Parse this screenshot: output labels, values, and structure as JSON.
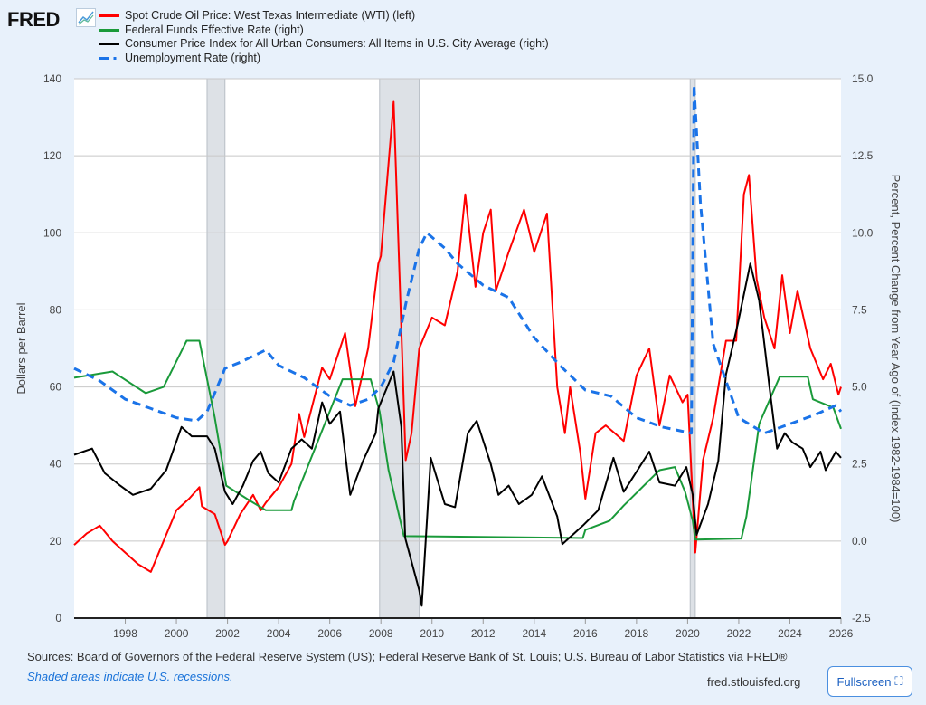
{
  "logo": "FRED",
  "chart_data": {
    "type": "line",
    "legend_placement": "top-left",
    "legend": [
      "Spot Crude Oil Price: West Texas Intermediate (WTI) (left)",
      "Federal Funds Effective Rate (right)",
      "Consumer Price Index for All Urban Consumers: All Items in U.S. City Average (right)",
      "Unemployment Rate (right)"
    ],
    "ylabel_left": "Dollars per Barrel",
    "ylabel_right": "Percent, Percent Change from Year Ago of (Index 1982-1984=100)",
    "xlim": [
      1996,
      2026
    ],
    "ylim_left": [
      0,
      140
    ],
    "ylim_right": [
      -2.5,
      15
    ],
    "x_ticks": [
      "1998",
      "2000",
      "2002",
      "2004",
      "2006",
      "2008",
      "2010",
      "2012",
      "2014",
      "2016",
      "2018",
      "2020",
      "2022",
      "2024",
      "2026"
    ],
    "left_ticks": [
      "0",
      "20",
      "40",
      "60",
      "80",
      "100",
      "120",
      "140"
    ],
    "right_ticks": [
      "-2.5",
      "0.0",
      "2.5",
      "5.0",
      "7.5",
      "10.0",
      "12.5",
      "15.0"
    ],
    "recessions": [
      [
        2001.2,
        2001.9
      ],
      [
        2007.95,
        2009.5
      ],
      [
        2020.1,
        2020.3
      ]
    ],
    "series": [
      {
        "name": "WTI",
        "axis": "left",
        "color": "#ff0000",
        "dash": false,
        "points": [
          [
            1996,
            19
          ],
          [
            1996.5,
            22
          ],
          [
            1997,
            24
          ],
          [
            1997.5,
            20
          ],
          [
            1998,
            17
          ],
          [
            1998.5,
            14
          ],
          [
            1999,
            12
          ],
          [
            1999.5,
            20
          ],
          [
            2000,
            28
          ],
          [
            2000.5,
            31
          ],
          [
            2000.9,
            34
          ],
          [
            2001,
            29
          ],
          [
            2001.5,
            27
          ],
          [
            2001.9,
            19
          ],
          [
            2002,
            20
          ],
          [
            2002.5,
            27
          ],
          [
            2003,
            32
          ],
          [
            2003.3,
            28
          ],
          [
            2003.5,
            30
          ],
          [
            2004,
            34
          ],
          [
            2004.5,
            40
          ],
          [
            2004.8,
            53
          ],
          [
            2005,
            47
          ],
          [
            2005.7,
            65
          ],
          [
            2006,
            62
          ],
          [
            2006.6,
            74
          ],
          [
            2007,
            55
          ],
          [
            2007.5,
            70
          ],
          [
            2007.9,
            92
          ],
          [
            2008,
            94
          ],
          [
            2008.5,
            134
          ],
          [
            2008.8,
            75
          ],
          [
            2008.97,
            41
          ],
          [
            2009.2,
            48
          ],
          [
            2009.5,
            70
          ],
          [
            2010,
            78
          ],
          [
            2010.5,
            76
          ],
          [
            2011,
            90
          ],
          [
            2011.3,
            110
          ],
          [
            2011.7,
            86
          ],
          [
            2012,
            100
          ],
          [
            2012.3,
            106
          ],
          [
            2012.5,
            85
          ],
          [
            2013,
            95
          ],
          [
            2013.6,
            106
          ],
          [
            2014,
            95
          ],
          [
            2014.5,
            105
          ],
          [
            2014.9,
            60
          ],
          [
            2015.2,
            48
          ],
          [
            2015.4,
            60
          ],
          [
            2015.8,
            43
          ],
          [
            2016,
            31
          ],
          [
            2016.4,
            48
          ],
          [
            2016.8,
            50
          ],
          [
            2017.5,
            46
          ],
          [
            2018,
            63
          ],
          [
            2018.5,
            70
          ],
          [
            2018.9,
            50
          ],
          [
            2019.3,
            63
          ],
          [
            2019.8,
            56
          ],
          [
            2020,
            58
          ],
          [
            2020.3,
            17
          ],
          [
            2020.6,
            41
          ],
          [
            2021,
            52
          ],
          [
            2021.5,
            72
          ],
          [
            2021.9,
            72
          ],
          [
            2022.2,
            110
          ],
          [
            2022.4,
            115
          ],
          [
            2022.7,
            88
          ],
          [
            2023,
            78
          ],
          [
            2023.4,
            70
          ],
          [
            2023.7,
            89
          ],
          [
            2024,
            74
          ],
          [
            2024.3,
            85
          ],
          [
            2024.8,
            70
          ],
          [
            2025.3,
            62
          ],
          [
            2025.6,
            66
          ],
          [
            2025.9,
            58
          ],
          [
            2026,
            60
          ]
        ]
      },
      {
        "name": "Federal Funds Effective Rate",
        "axis": "right",
        "color": "#1a9a3a",
        "dash": false,
        "points": [
          [
            1996,
            5.3
          ],
          [
            1997.5,
            5.5
          ],
          [
            1998.8,
            4.8
          ],
          [
            1999.5,
            5.0
          ],
          [
            2000.4,
            6.5
          ],
          [
            2000.9,
            6.5
          ],
          [
            2001.5,
            4.0
          ],
          [
            2001.95,
            1.8
          ],
          [
            2002.9,
            1.3
          ],
          [
            2003.5,
            1.0
          ],
          [
            2004.5,
            1.0
          ],
          [
            2004.6,
            1.3
          ],
          [
            2006.5,
            5.25
          ],
          [
            2007.6,
            5.25
          ],
          [
            2007.95,
            4.2
          ],
          [
            2008.3,
            2.3
          ],
          [
            2008.9,
            0.16
          ],
          [
            2015.9,
            0.1
          ],
          [
            2016,
            0.36
          ],
          [
            2016.95,
            0.66
          ],
          [
            2017.5,
            1.15
          ],
          [
            2018.9,
            2.3
          ],
          [
            2019.5,
            2.4
          ],
          [
            2019.9,
            1.6
          ],
          [
            2020.2,
            0.65
          ],
          [
            2020.3,
            0.05
          ],
          [
            2022.1,
            0.08
          ],
          [
            2022.3,
            0.8
          ],
          [
            2022.8,
            3.8
          ],
          [
            2023.6,
            5.33
          ],
          [
            2024.7,
            5.33
          ],
          [
            2024.9,
            4.6
          ],
          [
            2025.7,
            4.33
          ],
          [
            2026,
            3.64
          ]
        ]
      },
      {
        "name": "CPI",
        "axis": "right",
        "color": "#000000",
        "dash": false,
        "points": [
          [
            1996,
            2.8
          ],
          [
            1996.7,
            3.0
          ],
          [
            1997.2,
            2.2
          ],
          [
            1997.8,
            1.8
          ],
          [
            1998.3,
            1.5
          ],
          [
            1999,
            1.7
          ],
          [
            1999.6,
            2.3
          ],
          [
            2000.2,
            3.7
          ],
          [
            2000.6,
            3.4
          ],
          [
            2001.2,
            3.4
          ],
          [
            2001.5,
            3.0
          ],
          [
            2001.9,
            1.6
          ],
          [
            2002.2,
            1.2
          ],
          [
            2002.6,
            1.8
          ],
          [
            2003,
            2.6
          ],
          [
            2003.3,
            2.9
          ],
          [
            2003.6,
            2.2
          ],
          [
            2004,
            1.9
          ],
          [
            2004.5,
            3.0
          ],
          [
            2004.9,
            3.3
          ],
          [
            2005.3,
            3.0
          ],
          [
            2005.7,
            4.5
          ],
          [
            2006,
            3.8
          ],
          [
            2006.4,
            4.2
          ],
          [
            2006.8,
            1.5
          ],
          [
            2007.3,
            2.6
          ],
          [
            2007.8,
            3.5
          ],
          [
            2007.9,
            4.3
          ],
          [
            2008.5,
            5.5
          ],
          [
            2008.8,
            3.7
          ],
          [
            2008.95,
            0.1
          ],
          [
            2009.5,
            -1.6
          ],
          [
            2009.6,
            -2.1
          ],
          [
            2009.95,
            2.7
          ],
          [
            2010.5,
            1.2
          ],
          [
            2010.9,
            1.1
          ],
          [
            2011.4,
            3.5
          ],
          [
            2011.75,
            3.9
          ],
          [
            2012.3,
            2.5
          ],
          [
            2012.6,
            1.5
          ],
          [
            2013,
            1.8
          ],
          [
            2013.4,
            1.2
          ],
          [
            2013.9,
            1.5
          ],
          [
            2014.3,
            2.1
          ],
          [
            2014.9,
            0.8
          ],
          [
            2015.1,
            -0.1
          ],
          [
            2015.5,
            0.2
          ],
          [
            2015.9,
            0.5
          ],
          [
            2016.5,
            1.0
          ],
          [
            2017.1,
            2.7
          ],
          [
            2017.5,
            1.6
          ],
          [
            2018.5,
            2.9
          ],
          [
            2018.9,
            1.9
          ],
          [
            2019.5,
            1.8
          ],
          [
            2019.95,
            2.4
          ],
          [
            2020.2,
            1.5
          ],
          [
            2020.35,
            0.2
          ],
          [
            2020.8,
            1.2
          ],
          [
            2021.2,
            2.6
          ],
          [
            2021.5,
            5.4
          ],
          [
            2021.95,
            7.0
          ],
          [
            2022.45,
            9.0
          ],
          [
            2022.8,
            7.8
          ],
          [
            2023.2,
            5.0
          ],
          [
            2023.5,
            3.0
          ],
          [
            2023.8,
            3.5
          ],
          [
            2024.1,
            3.2
          ],
          [
            2024.5,
            3.0
          ],
          [
            2024.8,
            2.4
          ],
          [
            2025.2,
            2.9
          ],
          [
            2025.4,
            2.3
          ],
          [
            2025.8,
            2.9
          ],
          [
            2026,
            2.7
          ]
        ]
      },
      {
        "name": "Unemployment Rate",
        "axis": "right",
        "color": "#1a73e8",
        "dash": true,
        "points": [
          [
            1996,
            5.6
          ],
          [
            1997,
            5.2
          ],
          [
            1998,
            4.6
          ],
          [
            1999,
            4.3
          ],
          [
            2000,
            4.0
          ],
          [
            2000.8,
            3.9
          ],
          [
            2001.2,
            4.2
          ],
          [
            2001.9,
            5.6
          ],
          [
            2002.5,
            5.8
          ],
          [
            2003.5,
            6.2
          ],
          [
            2004,
            5.7
          ],
          [
            2005,
            5.3
          ],
          [
            2006,
            4.7
          ],
          [
            2006.8,
            4.4
          ],
          [
            2007.5,
            4.6
          ],
          [
            2008,
            5.0
          ],
          [
            2008.5,
            5.8
          ],
          [
            2009,
            7.8
          ],
          [
            2009.5,
            9.5
          ],
          [
            2009.8,
            10.0
          ],
          [
            2010.5,
            9.5
          ],
          [
            2011,
            9.0
          ],
          [
            2012,
            8.3
          ],
          [
            2013,
            7.9
          ],
          [
            2014,
            6.6
          ],
          [
            2015,
            5.7
          ],
          [
            2016,
            4.9
          ],
          [
            2017,
            4.7
          ],
          [
            2018,
            4.0
          ],
          [
            2019,
            3.7
          ],
          [
            2020.15,
            3.5
          ],
          [
            2020.25,
            14.8
          ],
          [
            2020.5,
            11.0
          ],
          [
            2021,
            6.4
          ],
          [
            2022,
            4.0
          ],
          [
            2023,
            3.5
          ],
          [
            2024,
            3.8
          ],
          [
            2025,
            4.1
          ],
          [
            2025.8,
            4.4
          ],
          [
            2026,
            4.2
          ]
        ]
      }
    ]
  },
  "footer": {
    "sources": "Sources: Board of Governors of the Federal Reserve System (US); Federal Reserve Bank of St. Louis; U.S. Bureau of Labor Statistics via FRED®",
    "recession_note": "Shaded areas indicate U.S. recessions.",
    "site": "fred.stlouisfed.org",
    "fullscreen": "Fullscreen"
  }
}
